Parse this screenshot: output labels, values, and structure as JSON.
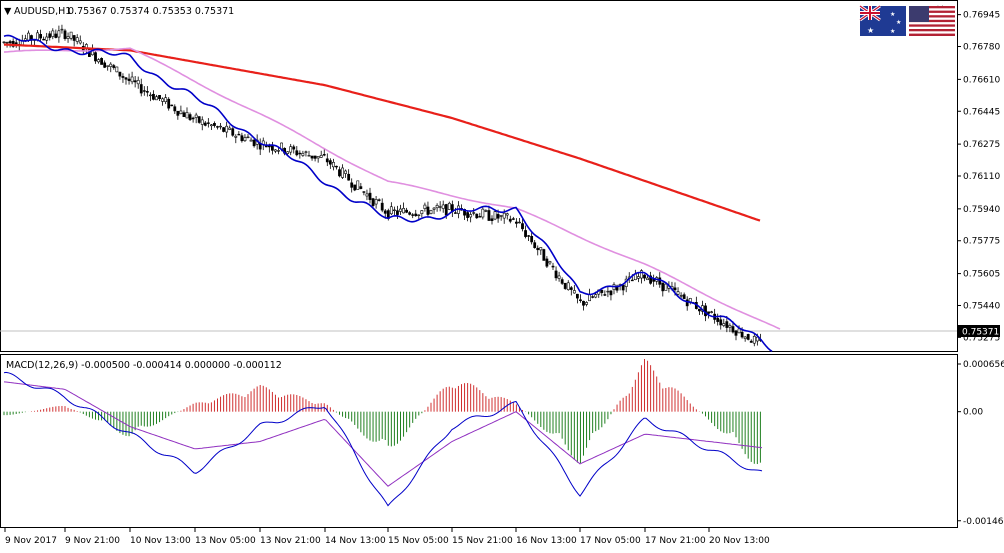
{
  "header": {
    "symbol_tf": "AUDUSD,H1",
    "ohlc": "0.75367 0.75374 0.75353 0.75371"
  },
  "flags": {
    "left": "australia-flag",
    "right": "usa-flag"
  },
  "price_panel": {
    "axis_labels": [
      "0.76945",
      "0.76780",
      "0.76610",
      "0.76445",
      "0.76275",
      "0.76110",
      "0.75940",
      "0.75775",
      "0.75605",
      "0.75440",
      "0.75275"
    ],
    "current_price": "0.75371"
  },
  "macd_panel": {
    "header": "MACD(12,26,9) -0.000500 -0.000414 0.000000 -0.000112",
    "axis_labels": [
      "0.000656",
      "0.00",
      "-0.001463"
    ]
  },
  "time_labels": [
    "9 Nov 2017",
    "9 Nov 21:00",
    "10 Nov 13:00",
    "13 Nov 05:00",
    "13 Nov 21:00",
    "14 Nov 13:00",
    "15 Nov 05:00",
    "15 Nov 21:00",
    "16 Nov 13:00",
    "17 Nov 05:00",
    "17 Nov 21:00",
    "20 Nov 13:00"
  ],
  "colors": {
    "ma_slow": "#e8201a",
    "ma_mid": "#e090e0",
    "ma_fast": "#0000c8",
    "hist_pos": "#d03030",
    "hist_neg": "#208020",
    "signal": "#9030c0",
    "macd_line": "#0000c8"
  },
  "chart_data": [
    {
      "type": "candlestick",
      "series": [
        {
          "name": "price_anchors",
          "x": [
            "9 Nov 2017",
            "9 Nov 21:00",
            "10 Nov 13:00",
            "13 Nov 05:00",
            "13 Nov 21:00",
            "14 Nov 13:00",
            "15 Nov 05:00",
            "15 Nov 21:00",
            "16 Nov 13:00",
            "17 Nov 05:00",
            "17 Nov 21:00",
            "20 Nov 13:00"
          ],
          "values": [
            0.768,
            0.7685,
            0.766,
            0.764,
            0.7628,
            0.762,
            0.7592,
            0.7594,
            0.7588,
            0.7545,
            0.756,
            0.754
          ]
        }
      ],
      "moving_averages": [
        {
          "x": [
            "9 Nov 2017",
            "10 Nov 13:00",
            "14 Nov 13:00",
            "15 Nov 21:00",
            "17 Nov 05:00",
            "20 Nov 13:00"
          ],
          "values": [
            0.7679,
            0.7676,
            0.7658,
            0.7641,
            0.762,
            0.7597
          ]
        },
        {
          "x": [
            "9 Nov 2017",
            "10 Nov 13:00",
            "13 Nov 21:00",
            "15 Nov 05:00",
            "16 Nov 13:00",
            "17 Nov 21:00",
            "20 Nov 13:00"
          ],
          "values": [
            0.7675,
            0.7677,
            0.7643,
            0.7608,
            0.7594,
            0.7565,
            0.7549
          ]
        },
        {
          "x": [
            "9 Nov 2017",
            "10 Nov 13:00",
            "13 Nov 21:00",
            "15 Nov 05:00",
            "16 Nov 13:00",
            "17 Nov 05:00",
            "17 Nov 21:00",
            "20 Nov 13:00"
          ],
          "values": [
            0.7682,
            0.7672,
            0.763,
            0.7588,
            0.7595,
            0.755,
            0.756,
            0.7541
          ]
        }
      ],
      "ylim": [
        0.7522,
        0.77
      ],
      "grid": false
    },
    {
      "type": "bar",
      "x": [
        "9 Nov 2017",
        "9 Nov 21:00",
        "10 Nov 13:00",
        "13 Nov 05:00",
        "13 Nov 21:00",
        "14 Nov 13:00",
        "15 Nov 05:00",
        "15 Nov 21:00",
        "16 Nov 13:00",
        "17 Nov 05:00",
        "17 Nov 21:00",
        "20 Nov 13:00"
      ],
      "histogram": [
        -5e-05,
        8e-05,
        -0.0003,
        0.0001,
        0.0003,
        0.0001,
        -0.0005,
        0.0004,
        0.0001,
        -0.0006,
        0.0006,
        -0.0001
      ],
      "macd": [
        0.0005,
        0.0002,
        -0.0003,
        -0.0008,
        -0.0002,
        0.0001,
        -0.0013,
        -0.0002,
        0.0001,
        -0.0011,
        -0.0001,
        -0.0005
      ],
      "signal": [
        0.0004,
        0.0003,
        -0.0002,
        -0.0005,
        -0.0004,
        -0.0001,
        -0.001,
        -0.0004,
        0.0,
        -0.0007,
        -0.0003,
        -0.0004
      ],
      "ylim": [
        -0.00152,
        0.00072
      ],
      "grid": false
    }
  ]
}
